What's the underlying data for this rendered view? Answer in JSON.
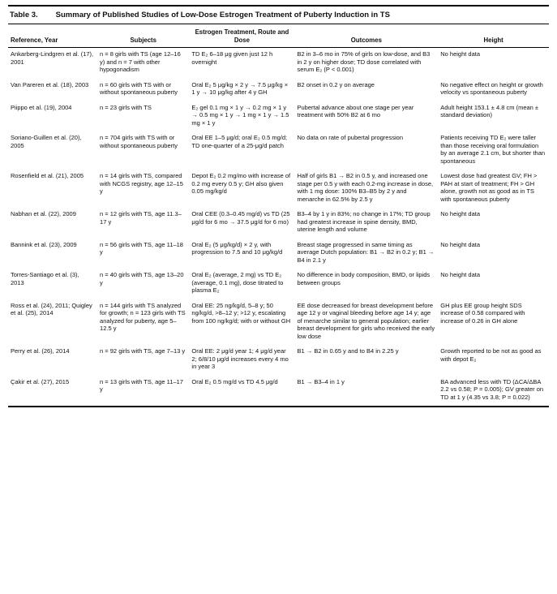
{
  "table": {
    "title_label": "Table 3.",
    "title": "Summary of Published Studies of Low-Dose Estrogen Treatment of Puberty Induction in TS",
    "columns": [
      "Reference, Year",
      "Subjects",
      "Estrogen Treatment, Route and Dose",
      "Outcomes",
      "Height"
    ],
    "rows": [
      {
        "cells": [
          "Ankarberg-Lindgren et al. (17), 2001",
          "n = 8 girls with TS (age 12–16 y) and n = 7 with other hypogonadism",
          "TD E₂ 6–18 μg given just 12 h overnight",
          "B2 in 3–6 mo in 75% of girls on low-dose, and B3 in 2 y on higher dose; TD dose correlated with serum E₂ (P < 0.001)",
          "No height data"
        ]
      },
      {
        "cells": [
          "Van Pareren et al. (18), 2003",
          "n = 60 girls with TS with or without spontaneous puberty",
          "Oral E₂ 5 μg/kg × 2 y → 7.5 μg/kg × 1 y → 10 μg/kg after 4 y GH",
          "B2 onset in 0.2 y on average",
          "No negative effect on height or growth velocity vs spontaneous puberty"
        ]
      },
      {
        "cells": [
          "Piippo et al. (19), 2004",
          "n = 23 girls with TS",
          "E₂ gel 0.1 mg × 1 y → 0.2 mg × 1 y → 0.5 mg × 1 y → 1 mg × 1 y → 1.5 mg × 1 y",
          "Pubertal advance about one stage per year treatment with 50% B2 at 6 mo",
          "Adult height 153.1 ± 4.8 cm (mean ± standard deviation)"
        ]
      },
      {
        "cells": [
          "Soriano-Guillen et al. (20), 2005",
          "n = 704 girls with TS with or without spontaneous puberty",
          "Oral EE 1–5 μg/d; oral E₂ 0.5 mg/d; TD one-quarter of a 25-μg/d patch",
          "No data on rate of pubertal progression",
          "Patients receiving TD E₂ were taller than those receiving oral formulation by an average 2.1 cm, but shorter than spontaneous"
        ]
      },
      {
        "cells": [
          "Rosenfield et al. (21), 2005",
          "n = 14 girls with TS, compared with NCGS registry, age 12–15 y",
          "Depot E₂ 0.2 mg/mo with increase of 0.2 mg every 0.5 y; GH also given 0.05 mg/kg/d",
          "Half of girls B1 → B2 in 0.5 y, and increased one stage per 0.5 y with each 0.2-mg increase in dose, with 1 mg dose: 100% B3–B5 by 2 y and menarche in 62.5% by 2.5 y",
          "Lowest dose had greatest GV; FH > PAH at start of treatment; FH > GH alone, growth not as good as in TS with spontaneous puberty"
        ]
      },
      {
        "cells": [
          "Nabhan et al. (22), 2009",
          "n = 12 girls with TS, age 11.3–17 y",
          "Oral CEE (0.3–0.45 mg/d) vs TD (25 μg/d for 6 mo → 37.5 μg/d for 6 mo)",
          "B3–4 by 1 y in 83%; no change in 17%; TD group had greatest increase in spine density, BMD, uterine length and volume",
          "No height data"
        ]
      },
      {
        "cells": [
          "Bannink et al. (23), 2009",
          "n = 56 girls with TS, age 11–18 y",
          "Oral E₂ (5 μg/kg/d) × 2 y, with progression to 7.5 and 10 μg/kg/d",
          "Breast stage progressed in same timing as average Dutch population: B1 → B2 in 0.2 y; B1 → B4 in 2.1 y",
          "No height data"
        ]
      },
      {
        "cells": [
          "Torres-Santiago et al. (3), 2013",
          "n = 40 girls with TS, age 13–20 y",
          "Oral E₂ (average, 2 mg) vs TD E₂ (average, 0.1 mg), dose titrated to plasma E₂",
          "No difference in body composition, BMD, or lipids between groups",
          "No height data"
        ]
      },
      {
        "cells": [
          "Ross et al. (24), 2011; Quigley et al. (25), 2014",
          "n = 144 girls with TS analyzed for growth; n = 123 girls with TS analyzed for puberty, age 5–12.5 y",
          "Oral EE: 25 ng/kg/d, 5–8 y; 50 ng/kg/d, >8–12 y; >12 y, escalating from 100 ng/kg/d; with or without GH",
          "EE dose decreased for breast development before age 12 y or vaginal bleeding before age 14 y; age of menarche similar to general population; earlier breast development for girls who received the early low dose",
          "GH plus EE group height SDS increase of 0.58 compared with increase of 0.26 in GH alone"
        ]
      },
      {
        "cells": [
          "Perry et al. (26), 2014",
          "n = 92 girls with TS, age 7–13 y",
          "Oral EE: 2 μg/d year 1; 4 μg/d year 2; 6/8/10 μg/d increases every 4 mo in year 3",
          "B1 → B2 in 0.65 y and to B4 in 2.25 y",
          "Growth reported to be not as good as with depot E₂"
        ]
      },
      {
        "cells": [
          "Çakir et al. (27), 2015",
          "n = 13 girls with TS, age 11–17 y",
          "Oral E₂ 0.5 mg/d vs TD 4.5 μg/d",
          "B1 → B3–4 in 1 y",
          "BA advanced less with TD (ΔCA/ΔBA 2.2 vs 0.58; P = 0.005); GV greater on TD at 1 y (4.35 vs 3.8; P = 0.022)"
        ]
      }
    ]
  }
}
